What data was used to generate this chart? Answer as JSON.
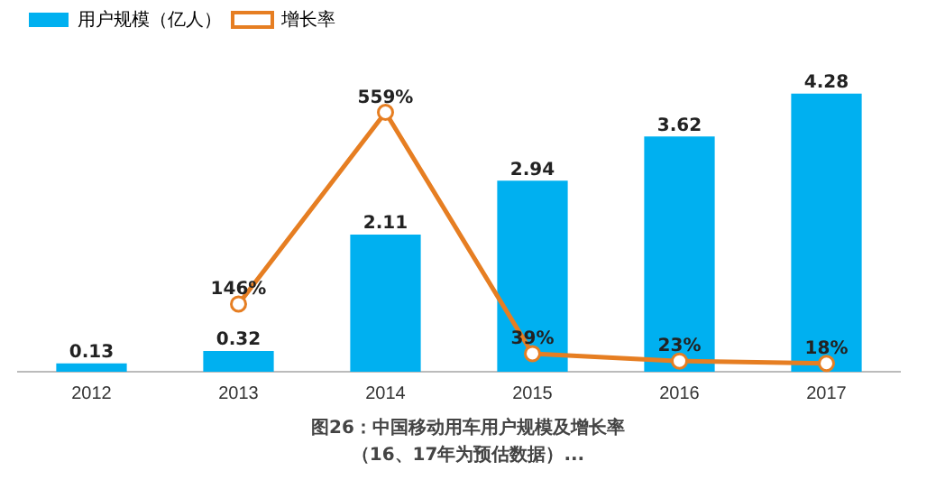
{
  "chart_data": {
    "type": "bar",
    "title": "图26：中国移动用车用户规模及增长率",
    "subtitle": "（16、17年为预估数据）...",
    "categories": [
      "2012",
      "2013",
      "2014",
      "2015",
      "2016",
      "2017"
    ],
    "series": [
      {
        "name": "用户规模（亿人）",
        "color": "#00b0f0",
        "values": [
          0.13,
          0.32,
          2.11,
          2.94,
          3.62,
          4.28
        ]
      },
      {
        "name": "增长率",
        "type": "line",
        "axis": "y2",
        "color": "#e67e22",
        "values": [
          null,
          146,
          559,
          39,
          23,
          18
        ],
        "value_labels": [
          null,
          "146%",
          "559%",
          "39%",
          "23%",
          "18%"
        ]
      }
    ],
    "data_labels": true,
    "legend": "top left",
    "marker": "circle",
    "grid": false,
    "tick_labels": "x"
  }
}
